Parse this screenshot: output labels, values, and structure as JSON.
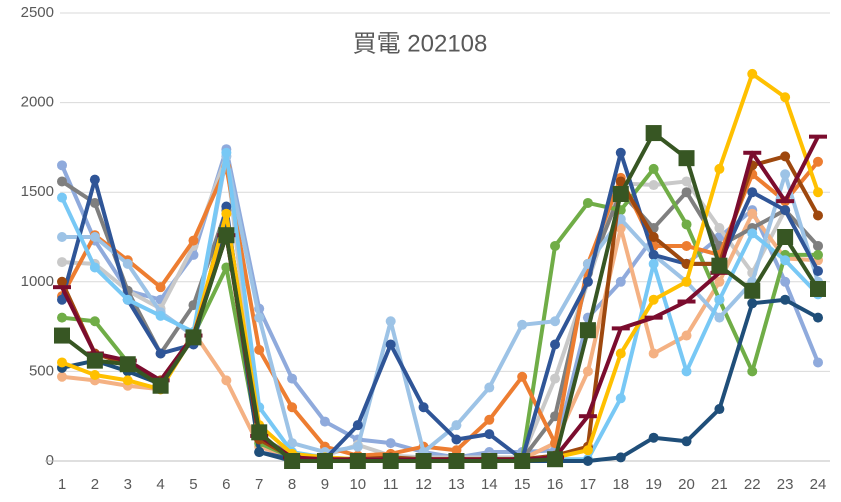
{
  "chart_data": {
    "type": "line",
    "title": "買電 202108",
    "categories": [
      "1",
      "2",
      "3",
      "4",
      "5",
      "6",
      "7",
      "8",
      "9",
      "10",
      "11",
      "12",
      "13",
      "14",
      "15",
      "16",
      "17",
      "18",
      "19",
      "20",
      "21",
      "22",
      "23",
      "24"
    ],
    "ylim": [
      0,
      2500
    ],
    "yticks": [
      0,
      500,
      1000,
      1500,
      2000,
      2500
    ],
    "grid": true,
    "series": [
      {
        "color": "#8faadc",
        "marker": "circle",
        "values": [
          1650,
          1230,
          950,
          900,
          1150,
          1740,
          850,
          460,
          220,
          120,
          100,
          50,
          20,
          50,
          50,
          60,
          800,
          1000,
          1250,
          1100,
          1250,
          1400,
          1000,
          550
        ]
      },
      {
        "color": "#c9c9c9",
        "marker": "circle",
        "values": [
          1110,
          1100,
          950,
          850,
          1200,
          1700,
          100,
          30,
          30,
          90,
          30,
          20,
          20,
          20,
          20,
          460,
          1000,
          1550,
          1540,
          1560,
          1300,
          1050,
          1400,
          1200
        ]
      },
      {
        "color": "#f4b183",
        "marker": "circle",
        "values": [
          470,
          450,
          420,
          400,
          720,
          450,
          80,
          20,
          10,
          10,
          10,
          10,
          10,
          10,
          10,
          100,
          500,
          1300,
          600,
          700,
          1000,
          1380,
          1130,
          1120
        ]
      },
      {
        "color": "#7f7f7f",
        "marker": "circle",
        "values": [
          1560,
          1440,
          950,
          600,
          870,
          1400,
          140,
          30,
          10,
          10,
          10,
          10,
          10,
          10,
          10,
          250,
          1050,
          1500,
          1300,
          1500,
          1200,
          1300,
          1400,
          1200
        ]
      },
      {
        "color": "#70ad47",
        "marker": "circle",
        "values": [
          800,
          780,
          550,
          420,
          700,
          1080,
          100,
          20,
          10,
          10,
          10,
          10,
          10,
          10,
          10,
          1200,
          1440,
          1400,
          1630,
          1320,
          900,
          500,
          1150,
          1150
        ]
      },
      {
        "color": "#ed7d31",
        "marker": "circle",
        "values": [
          920,
          1260,
          1120,
          970,
          1230,
          1640,
          620,
          300,
          80,
          30,
          40,
          80,
          60,
          230,
          470,
          100,
          1100,
          1580,
          1200,
          1200,
          1150,
          1600,
          1450,
          1670
        ]
      },
      {
        "color": "#9dc3e6",
        "marker": "circle",
        "values": [
          1250,
          1250,
          1100,
          830,
          700,
          1700,
          800,
          100,
          50,
          80,
          780,
          50,
          200,
          410,
          760,
          780,
          1100,
          1350,
          1150,
          1000,
          800,
          1000,
          1600,
          1000
        ]
      },
      {
        "color": "#2f5597",
        "marker": "circle",
        "values": [
          900,
          1570,
          900,
          600,
          650,
          1420,
          50,
          10,
          10,
          200,
          650,
          300,
          120,
          150,
          10,
          650,
          1000,
          1720,
          1150,
          1100,
          1100,
          1500,
          1400,
          1060
        ]
      },
      {
        "color": "#78c8f5",
        "marker": "circle",
        "values": [
          1470,
          1080,
          900,
          810,
          720,
          1720,
          300,
          50,
          20,
          10,
          10,
          10,
          10,
          10,
          10,
          10,
          10,
          350,
          1100,
          500,
          900,
          1270,
          1120,
          930
        ]
      },
      {
        "color": "#1f4e79",
        "marker": "circle",
        "values": [
          520,
          560,
          500,
          430,
          700,
          1300,
          50,
          0,
          0,
          0,
          0,
          0,
          0,
          0,
          0,
          0,
          0,
          20,
          130,
          110,
          290,
          880,
          900,
          800
        ]
      },
      {
        "color": "#9e480e",
        "marker": "circle",
        "values": [
          1000,
          600,
          540,
          450,
          700,
          1260,
          120,
          20,
          10,
          10,
          20,
          10,
          10,
          10,
          10,
          30,
          80,
          1560,
          1250,
          1100,
          1100,
          1650,
          1700,
          1370
        ]
      },
      {
        "color": "#ffc000",
        "marker": "circle",
        "values": [
          550,
          480,
          450,
          400,
          700,
          1380,
          200,
          40,
          20,
          10,
          10,
          10,
          10,
          10,
          10,
          20,
          60,
          600,
          900,
          1000,
          1630,
          2160,
          2030,
          1500
        ]
      },
      {
        "color": "#7b0c2e",
        "marker": "dash",
        "values": [
          970,
          600,
          560,
          450,
          700,
          1260,
          140,
          20,
          10,
          10,
          10,
          10,
          10,
          10,
          10,
          20,
          250,
          740,
          800,
          890,
          1050,
          1720,
          1450,
          1810
        ]
      },
      {
        "color": "#375623",
        "marker": "square",
        "values": [
          700,
          560,
          540,
          420,
          690,
          1260,
          160,
          0,
          0,
          0,
          0,
          0,
          0,
          0,
          0,
          10,
          730,
          1490,
          1830,
          1690,
          1090,
          950,
          1250,
          960
        ]
      }
    ]
  }
}
